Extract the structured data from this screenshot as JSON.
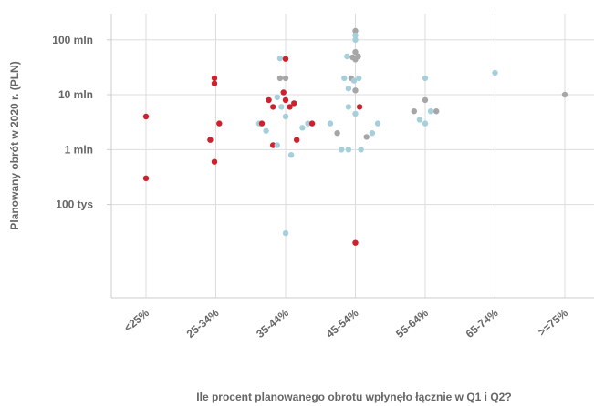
{
  "chart_data": {
    "type": "scatter",
    "title": "",
    "xlabel": "Ile procent planowanego obrotu wpłynęło łącznie w Q1 i Q2?",
    "ylabel": "Planowany obrót w 2020 r. (PLN)",
    "x_categories": [
      "<25%",
      "25-34%",
      "35-44%",
      "45-54%",
      "55-64%",
      "65-74%",
      ">=75%"
    ],
    "y_scale": "log",
    "y_ticks": [
      {
        "value": 100000,
        "label": "100 tys"
      },
      {
        "value": 1000000,
        "label": "1 mln"
      },
      {
        "value": 10000000,
        "label": "10 mln"
      },
      {
        "value": 100000000,
        "label": "100 mln"
      }
    ],
    "ylim": [
      2000,
      300000000
    ],
    "grid": true,
    "colors": {
      "red": "#d0202e",
      "blue": "#a6cfdc",
      "gray": "#a6a6a6"
    },
    "points": [
      {
        "cat": "<25%",
        "offset": 0.0,
        "y": 4000000,
        "color": "red"
      },
      {
        "cat": "<25%",
        "offset": 0.0,
        "y": 300000,
        "color": "red"
      },
      {
        "cat": "25-34%",
        "offset": -0.08,
        "y": 1500000,
        "color": "red"
      },
      {
        "cat": "25-34%",
        "offset": -0.02,
        "y": 20000000,
        "color": "red"
      },
      {
        "cat": "25-34%",
        "offset": -0.02,
        "y": 16000000,
        "color": "red"
      },
      {
        "cat": "25-34%",
        "offset": -0.02,
        "y": 600000,
        "color": "red"
      },
      {
        "cat": "25-34%",
        "offset": 0.05,
        "y": 3000000,
        "color": "red"
      },
      {
        "cat": "35-44%",
        "offset": -0.38,
        "y": 3000000,
        "color": "blue"
      },
      {
        "cat": "35-44%",
        "offset": -0.34,
        "y": 3000000,
        "color": "red"
      },
      {
        "cat": "35-44%",
        "offset": -0.28,
        "y": 2200000,
        "color": "blue"
      },
      {
        "cat": "35-44%",
        "offset": -0.24,
        "y": 8000000,
        "color": "red"
      },
      {
        "cat": "35-44%",
        "offset": -0.18,
        "y": 6000000,
        "color": "red"
      },
      {
        "cat": "35-44%",
        "offset": -0.18,
        "y": 1200000,
        "color": "red"
      },
      {
        "cat": "35-44%",
        "offset": -0.12,
        "y": 9000000,
        "color": "blue"
      },
      {
        "cat": "35-44%",
        "offset": -0.12,
        "y": 1200000,
        "color": "blue"
      },
      {
        "cat": "35-44%",
        "offset": -0.08,
        "y": 46000000,
        "color": "blue"
      },
      {
        "cat": "35-44%",
        "offset": -0.08,
        "y": 20000000,
        "color": "gray"
      },
      {
        "cat": "35-44%",
        "offset": -0.06,
        "y": 6000000,
        "color": "blue"
      },
      {
        "cat": "35-44%",
        "offset": -0.03,
        "y": 11000000,
        "color": "red"
      },
      {
        "cat": "35-44%",
        "offset": 0.0,
        "y": 45000000,
        "color": "red"
      },
      {
        "cat": "35-44%",
        "offset": 0.0,
        "y": 20000000,
        "color": "gray"
      },
      {
        "cat": "35-44%",
        "offset": 0.0,
        "y": 8000000,
        "color": "red"
      },
      {
        "cat": "35-44%",
        "offset": 0.0,
        "y": 4000000,
        "color": "blue"
      },
      {
        "cat": "35-44%",
        "offset": 0.0,
        "y": 30000,
        "color": "blue"
      },
      {
        "cat": "35-44%",
        "offset": 0.06,
        "y": 6000000,
        "color": "red"
      },
      {
        "cat": "35-44%",
        "offset": 0.08,
        "y": 800000,
        "color": "blue"
      },
      {
        "cat": "35-44%",
        "offset": 0.12,
        "y": 7000000,
        "color": "red"
      },
      {
        "cat": "35-44%",
        "offset": 0.16,
        "y": 1500000,
        "color": "red"
      },
      {
        "cat": "35-44%",
        "offset": 0.24,
        "y": 2500000,
        "color": "blue"
      },
      {
        "cat": "35-44%",
        "offset": 0.32,
        "y": 3000000,
        "color": "blue"
      },
      {
        "cat": "35-44%",
        "offset": 0.38,
        "y": 3000000,
        "color": "red"
      },
      {
        "cat": "45-54%",
        "offset": -0.36,
        "y": 3000000,
        "color": "blue"
      },
      {
        "cat": "45-54%",
        "offset": -0.26,
        "y": 2000000,
        "color": "gray"
      },
      {
        "cat": "45-54%",
        "offset": -0.2,
        "y": 1000000,
        "color": "blue"
      },
      {
        "cat": "45-54%",
        "offset": -0.16,
        "y": 20000000,
        "color": "blue"
      },
      {
        "cat": "45-54%",
        "offset": -0.12,
        "y": 50000000,
        "color": "blue"
      },
      {
        "cat": "45-54%",
        "offset": -0.1,
        "y": 13000000,
        "color": "blue"
      },
      {
        "cat": "45-54%",
        "offset": -0.1,
        "y": 6000000,
        "color": "blue"
      },
      {
        "cat": "45-54%",
        "offset": -0.1,
        "y": 1000000,
        "color": "blue"
      },
      {
        "cat": "45-54%",
        "offset": -0.06,
        "y": 20000000,
        "color": "gray"
      },
      {
        "cat": "45-54%",
        "offset": -0.04,
        "y": 48000000,
        "color": "gray"
      },
      {
        "cat": "45-54%",
        "offset": -0.02,
        "y": 18000000,
        "color": "blue"
      },
      {
        "cat": "45-54%",
        "offset": 0.0,
        "y": 145000000,
        "color": "gray"
      },
      {
        "cat": "45-54%",
        "offset": 0.0,
        "y": 120000000,
        "color": "blue"
      },
      {
        "cat": "45-54%",
        "offset": 0.0,
        "y": 100000000,
        "color": "blue"
      },
      {
        "cat": "45-54%",
        "offset": 0.0,
        "y": 60000000,
        "color": "gray"
      },
      {
        "cat": "45-54%",
        "offset": 0.0,
        "y": 44000000,
        "color": "gray"
      },
      {
        "cat": "45-54%",
        "offset": 0.0,
        "y": 12000000,
        "color": "gray"
      },
      {
        "cat": "45-54%",
        "offset": 0.0,
        "y": 4500000,
        "color": "blue"
      },
      {
        "cat": "45-54%",
        "offset": 0.0,
        "y": 20000,
        "color": "red"
      },
      {
        "cat": "45-54%",
        "offset": 0.04,
        "y": 50000000,
        "color": "gray"
      },
      {
        "cat": "45-54%",
        "offset": 0.05,
        "y": 20000000,
        "color": "blue"
      },
      {
        "cat": "45-54%",
        "offset": 0.06,
        "y": 6000000,
        "color": "red"
      },
      {
        "cat": "45-54%",
        "offset": 0.08,
        "y": 1000000,
        "color": "blue"
      },
      {
        "cat": "45-54%",
        "offset": 0.16,
        "y": 1700000,
        "color": "gray"
      },
      {
        "cat": "45-54%",
        "offset": 0.24,
        "y": 2000000,
        "color": "blue"
      },
      {
        "cat": "45-54%",
        "offset": 0.32,
        "y": 3000000,
        "color": "blue"
      },
      {
        "cat": "55-64%",
        "offset": -0.16,
        "y": 5000000,
        "color": "gray"
      },
      {
        "cat": "55-64%",
        "offset": -0.08,
        "y": 3500000,
        "color": "blue"
      },
      {
        "cat": "55-64%",
        "offset": 0.0,
        "y": 20000000,
        "color": "blue"
      },
      {
        "cat": "55-64%",
        "offset": 0.0,
        "y": 8000000,
        "color": "gray"
      },
      {
        "cat": "55-64%",
        "offset": 0.0,
        "y": 3000000,
        "color": "blue"
      },
      {
        "cat": "55-64%",
        "offset": 0.08,
        "y": 5000000,
        "color": "blue"
      },
      {
        "cat": "55-64%",
        "offset": 0.16,
        "y": 5000000,
        "color": "gray"
      },
      {
        "cat": "65-74%",
        "offset": 0.0,
        "y": 25000000,
        "color": "blue"
      },
      {
        "cat": ">=75%",
        "offset": 0.0,
        "y": 10000000,
        "color": "gray"
      }
    ]
  }
}
